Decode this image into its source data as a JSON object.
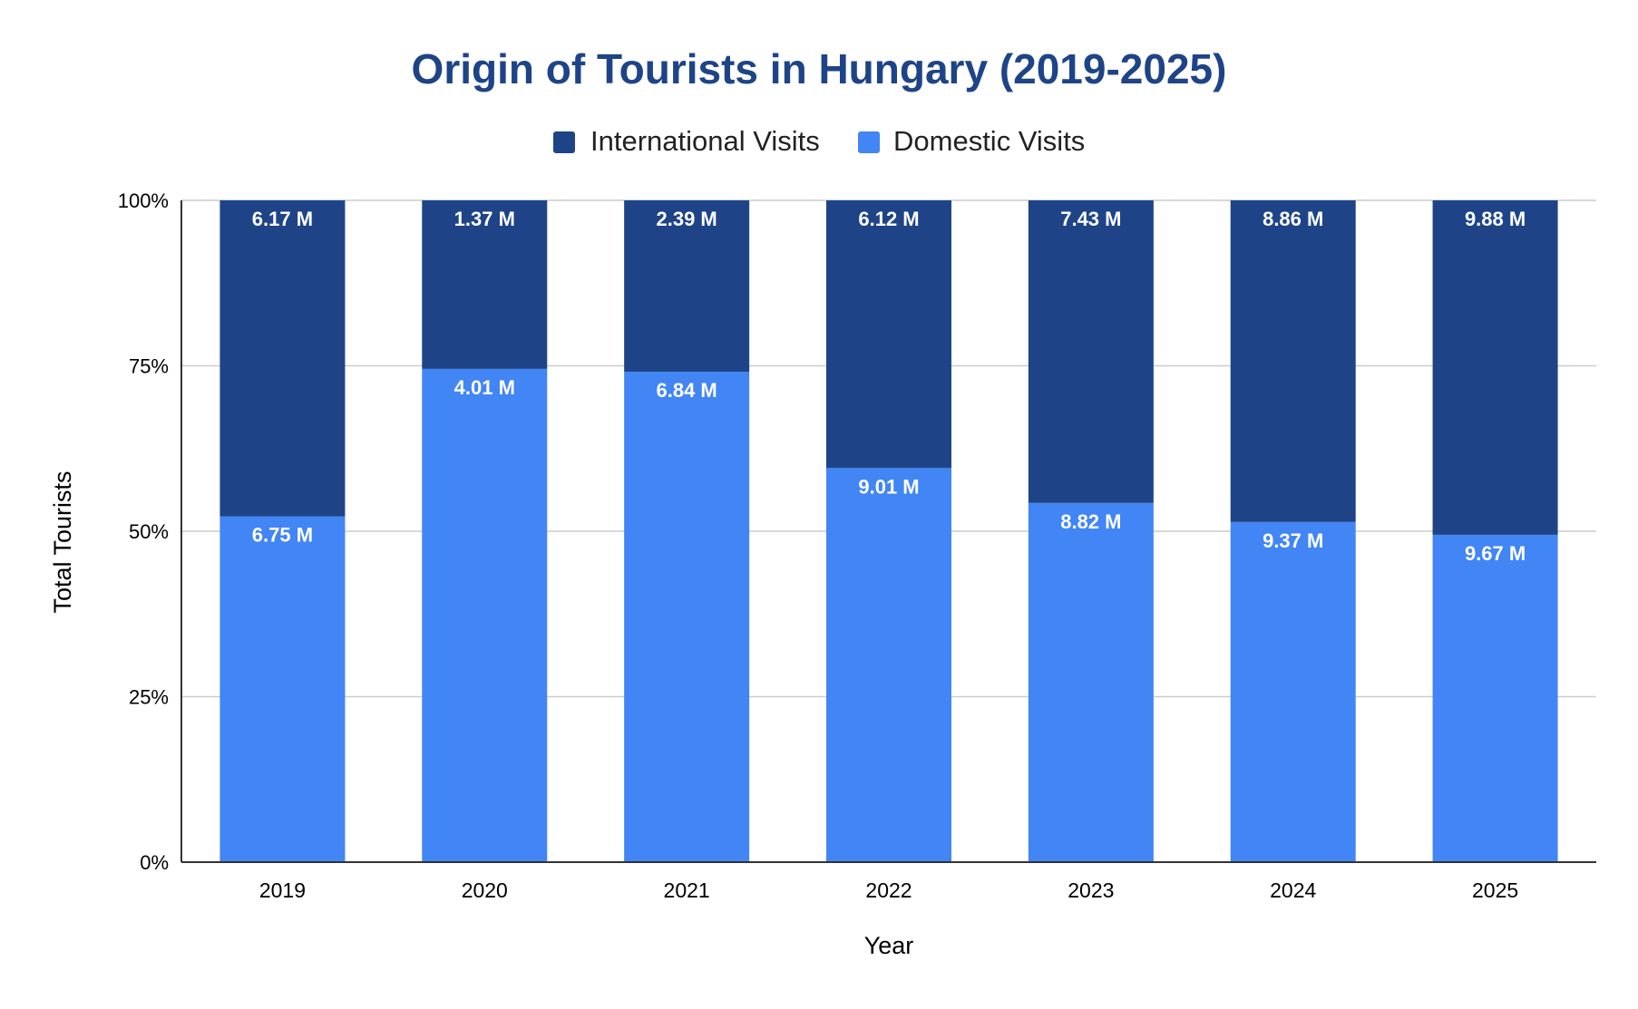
{
  "chart_data": {
    "type": "bar",
    "stacked": true,
    "normalized": true,
    "title": "Origin of Tourists in Hungary (2019-2025)",
    "xlabel": "Year",
    "ylabel": "Total Tourists",
    "ylim": [
      0,
      100
    ],
    "yticks": [
      "0%",
      "25%",
      "50%",
      "75%",
      "100%"
    ],
    "categories": [
      "2019",
      "2020",
      "2021",
      "2022",
      "2023",
      "2024",
      "2025"
    ],
    "legend_position": "top",
    "grid": true,
    "series": [
      {
        "name": "International Visits",
        "color": "#1e4487",
        "values": [
          6.17,
          1.37,
          2.39,
          6.12,
          7.43,
          8.86,
          9.88
        ],
        "labels": [
          "6.17 M",
          "1.37 M",
          "2.39 M",
          "6.12 M",
          "7.43 M",
          "8.86 M",
          "9.88 M"
        ]
      },
      {
        "name": "Domestic Visits",
        "color": "#4285f4",
        "values": [
          6.75,
          4.01,
          6.84,
          9.01,
          8.82,
          9.37,
          9.67
        ],
        "labels": [
          "6.75 M",
          "4.01 M",
          "6.84 M",
          "9.01 M",
          "8.82 M",
          "9.37 M",
          "9.67 M"
        ]
      }
    ],
    "colors": {
      "title": "#1e4487",
      "axis_text": "#000000",
      "grid": "#cccccc",
      "label_text": "#ffffff"
    }
  }
}
